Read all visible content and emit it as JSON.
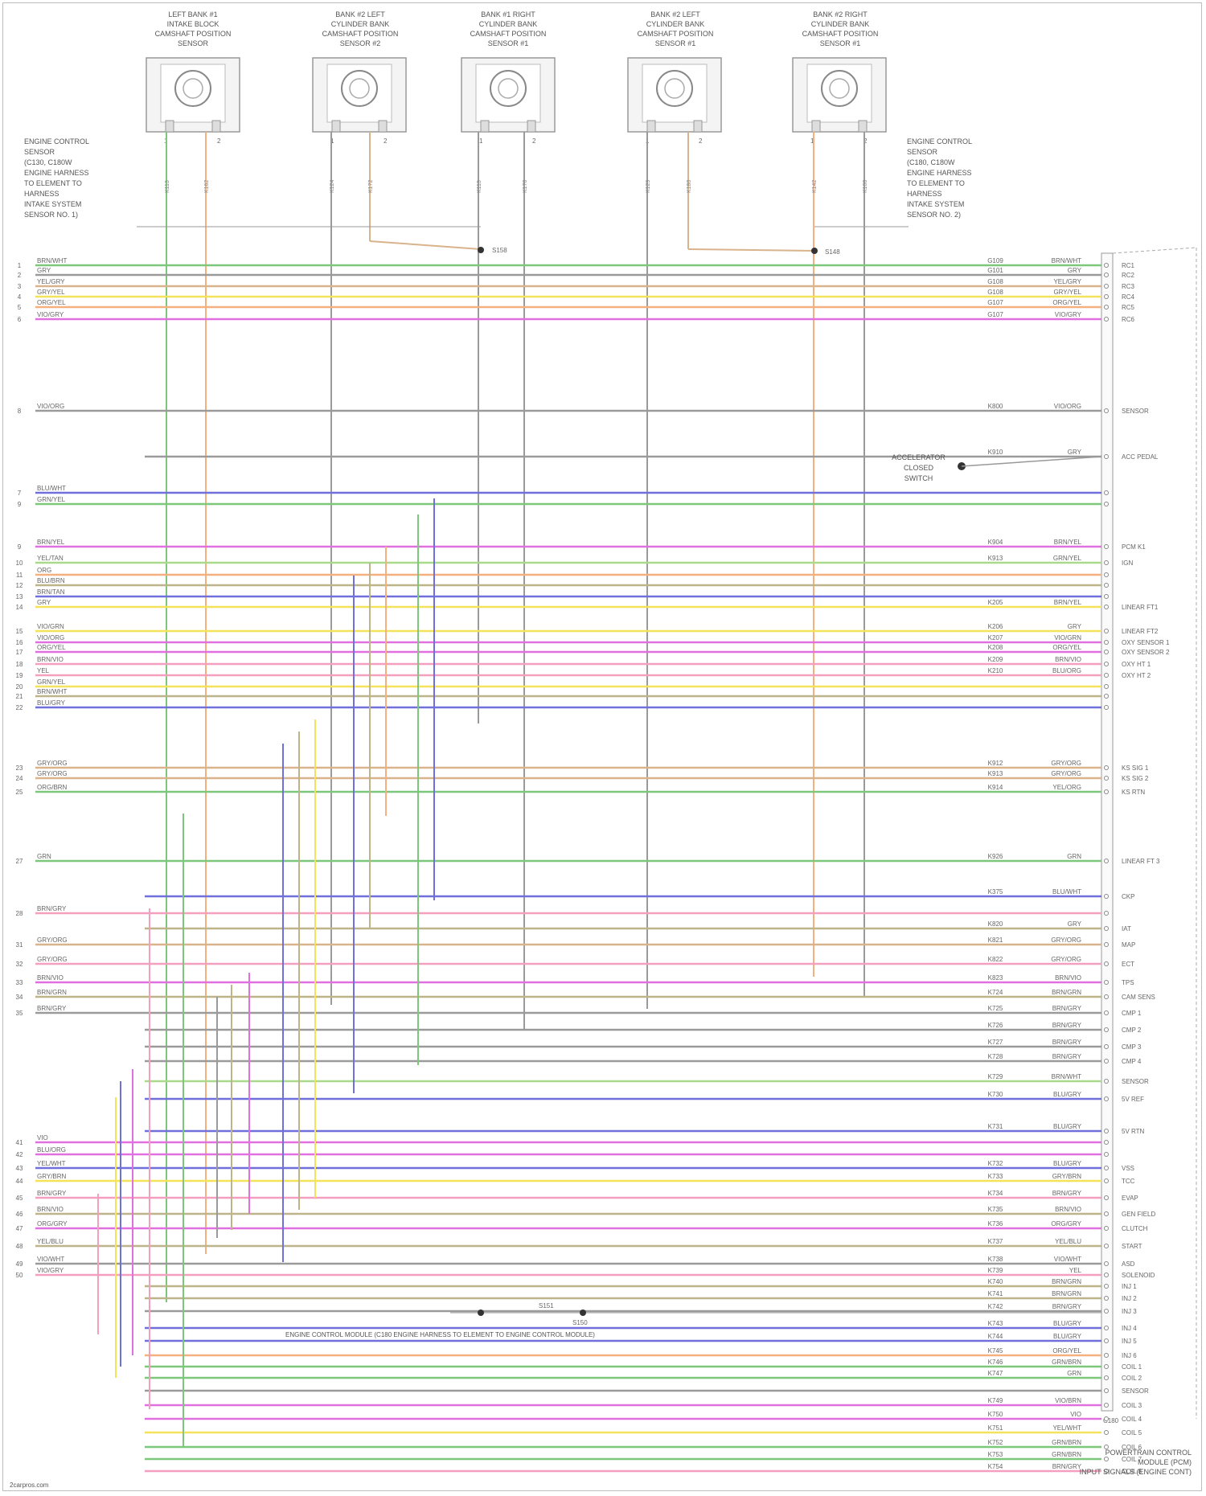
{
  "sensors": [
    {
      "label": "LEFT BANK #1\nINTAKE BLOCK\nCAMSHAFT POSITION\nSENSOR",
      "pins": [
        "1",
        "2"
      ]
    },
    {
      "label": "BANK #2 LEFT\nCYLINDER BANK\nCAMSHAFT POSITION\nSENSOR #2",
      "pins": [
        "1",
        "2"
      ]
    },
    {
      "label": "BANK #1 RIGHT\nCYLINDER BANK\nCAMSHAFT POSITION\nSENSOR #1",
      "pins": [
        "1",
        "2"
      ]
    },
    {
      "label": "BANK #2 LEFT\nCYLINDER BANK\nCAMSHAFT POSITION\nSENSOR #1",
      "pins": [
        "1",
        "2"
      ]
    },
    {
      "label": "BANK #2 RIGHT\nCYLINDER BANK\nCAMSHAFT POSITION\nSENSOR #1",
      "pins": [
        "1",
        "2"
      ]
    }
  ],
  "side_labels": {
    "left": "ENGINE CONTROL\nSENSOR\n(C130, C180W\nENGINE HARNESS\nTO ELEMENT TO\nHARNESS\nINTAKE SYSTEM\nSENSOR NO. 1)",
    "right": "ENGINE CONTROL\nSENSOR\n(C180, C180W\nENGINE HARNESS\nTO ELEMENT TO\nHARNESS\nINTAKE SYSTEM\nSENSOR NO. 2)",
    "accel": "ACCELERATOR\nCLOSED\nSWITCH"
  },
  "splice_labels": [
    "S158",
    "S148",
    "S151",
    "S150"
  ],
  "footer_note": "ENGINE CONTROL MODULE (C180 ENGINE HARNESS TO ELEMENT TO ENGINE CONTROL MODULE)",
  "title_block": "POWERTRAIN CONTROL\nMODULE (PCM)\nINPUT SIGNALS (ENGINE CONT)",
  "watermark": "2carpros.com",
  "connector_label": "C180",
  "colors": {
    "green": "#7dc77a",
    "gray": "#9a9a9a",
    "orange": "#f5b080",
    "yellow": "#f4e25a",
    "magenta": "#e070e0",
    "blue": "#7070dd",
    "olive": "#bdb48a",
    "pink": "#f3a0c0",
    "tan": "#d9b38c",
    "lightgreen": "#a9d98a"
  },
  "rows": [
    {
      "pin": "1",
      "left": "BRN/WHT",
      "color": "green",
      "code": "G109",
      "right": "BRN/WHT",
      "term": "RC1"
    },
    {
      "pin": "2",
      "left": "GRY",
      "color": "gray",
      "code": "G101",
      "right": "GRY",
      "term": "RC2"
    },
    {
      "pin": "3",
      "left": "YEL/GRY",
      "color": "tan",
      "code": "G108",
      "right": "YEL/GRY",
      "term": "RC3"
    },
    {
      "pin": "4",
      "left": "GRY/YEL",
      "color": "yellow",
      "code": "G108",
      "right": "GRY/YEL",
      "term": "RC4"
    },
    {
      "pin": "5",
      "left": "ORG/YEL",
      "color": "orange",
      "code": "G107",
      "right": "ORG/YEL",
      "term": "RC5"
    },
    {
      "pin": "6",
      "left": "VIO/GRY",
      "color": "magenta",
      "code": "G107",
      "right": "VIO/GRY",
      "term": "RC6"
    },
    {
      "pin": "8",
      "left": "VIO/ORG",
      "color": "gray",
      "code": "K800",
      "right": "VIO/ORG",
      "term": "SENSOR"
    },
    {
      "pin": "",
      "left": "",
      "color": "gray",
      "code": "K910",
      "right": "GRY",
      "term": "ACC PEDAL"
    },
    {
      "pin": "7",
      "left": "BLU/WHT",
      "color": "blue",
      "code": "",
      "right": "",
      "term": ""
    },
    {
      "pin": "9",
      "left": "GRN/YEL",
      "color": "green",
      "code": "",
      "right": "",
      "term": ""
    },
    {
      "pin": "9",
      "left": "BRN/YEL",
      "color": "magenta",
      "code": "K904",
      "right": "BRN/YEL",
      "term": "PCM K1"
    },
    {
      "pin": "10",
      "left": "YEL/TAN",
      "color": "lightgreen",
      "code": "K913",
      "right": "GRN/YEL",
      "term": "IGN"
    },
    {
      "pin": "11",
      "left": "ORG",
      "color": "orange",
      "code": "",
      "right": "",
      "term": ""
    },
    {
      "pin": "12",
      "left": "BLU/BRN",
      "color": "olive",
      "code": "",
      "right": "",
      "term": ""
    },
    {
      "pin": "13",
      "left": "BRN/TAN",
      "color": "blue",
      "code": "",
      "right": "",
      "term": ""
    },
    {
      "pin": "14",
      "left": "GRY",
      "color": "yellow",
      "code": "K205",
      "right": "BRN/YEL",
      "term": "LINEAR FT1"
    },
    {
      "pin": "15",
      "left": "VIO/GRN",
      "color": "yellow",
      "code": "K206",
      "right": "GRY",
      "term": "LINEAR FT2"
    },
    {
      "pin": "16",
      "left": "VIO/ORG",
      "color": "magenta",
      "code": "K207",
      "right": "VIO/GRN",
      "term": "OXY SENSOR 1"
    },
    {
      "pin": "17",
      "left": "ORG/YEL",
      "color": "magenta",
      "code": "K208",
      "right": "ORG/YEL",
      "term": "OXY SENSOR 2"
    },
    {
      "pin": "18",
      "left": "BRN/VIO",
      "color": "pink",
      "code": "K209",
      "right": "BRN/VIO",
      "term": "OXY HT 1"
    },
    {
      "pin": "19",
      "left": "YEL",
      "color": "pink",
      "code": "K210",
      "right": "BLU/ORG",
      "term": "OXY HT 2"
    },
    {
      "pin": "20",
      "left": "GRN/YEL",
      "color": "yellow",
      "code": "",
      "right": "",
      "term": ""
    },
    {
      "pin": "21",
      "left": "BRN/WHT",
      "color": "olive",
      "code": "",
      "right": "",
      "term": ""
    },
    {
      "pin": "22",
      "left": "BLU/GRY",
      "color": "blue",
      "code": "",
      "right": "",
      "term": ""
    },
    {
      "pin": "23",
      "left": "GRY/ORG",
      "color": "tan",
      "code": "K912",
      "right": "GRY/ORG",
      "term": "KS SIG 1"
    },
    {
      "pin": "24",
      "left": "GRY/ORG",
      "color": "tan",
      "code": "K913",
      "right": "GRY/ORG",
      "term": "KS SIG 2"
    },
    {
      "pin": "25",
      "left": "ORG/BRN",
      "color": "green",
      "code": "K914",
      "right": "YEL/ORG",
      "term": "KS RTN"
    },
    {
      "pin": "27",
      "left": "GRN",
      "color": "green",
      "code": "K926",
      "right": "GRN",
      "term": "LINEAR FT 3"
    },
    {
      "pin": "",
      "left": "",
      "color": "blue",
      "code": "K375",
      "right": "BLU/WHT",
      "term": "CKP"
    },
    {
      "pin": "28",
      "left": "BRN/GRY",
      "color": "pink",
      "code": "",
      "right": "",
      "term": ""
    },
    {
      "pin": "",
      "left": "",
      "color": "olive",
      "code": "K820",
      "right": "GRY",
      "term": "IAT"
    },
    {
      "pin": "31",
      "left": "GRY/ORG",
      "color": "tan",
      "code": "K821",
      "right": "GRY/ORG",
      "term": "MAP"
    },
    {
      "pin": "32",
      "left": "GRY/ORG",
      "color": "pink",
      "code": "K822",
      "right": "GRY/ORG",
      "term": "ECT"
    },
    {
      "pin": "33",
      "left": "BRN/VIO",
      "color": "magenta",
      "code": "K823",
      "right": "BRN/VIO",
      "term": "TPS"
    },
    {
      "pin": "34",
      "left": "BRN/GRN",
      "color": "olive",
      "code": "K724",
      "right": "BRN/GRN",
      "term": "CAM SENS"
    },
    {
      "pin": "35",
      "left": "BRN/GRY",
      "color": "gray",
      "code": "K725",
      "right": "BRN/GRY",
      "term": "CMP 1"
    },
    {
      "pin": "",
      "left": "",
      "color": "gray",
      "code": "K726",
      "right": "BRN/GRY",
      "term": "CMP 2"
    },
    {
      "pin": "",
      "left": "",
      "color": "gray",
      "code": "K727",
      "right": "BRN/GRY",
      "term": "CMP 3"
    },
    {
      "pin": "",
      "left": "",
      "color": "gray",
      "code": "K728",
      "right": "BRN/GRY",
      "term": "CMP 4"
    },
    {
      "pin": "",
      "left": "",
      "color": "lightgreen",
      "code": "K729",
      "right": "BRN/WHT",
      "term": "SENSOR"
    },
    {
      "pin": "",
      "left": "",
      "color": "blue",
      "code": "K730",
      "right": "BLU/GRY",
      "term": "5V REF"
    },
    {
      "pin": "",
      "left": "",
      "color": "blue",
      "code": "K731",
      "right": "BLU/GRY",
      "term": "5V RTN"
    },
    {
      "pin": "41",
      "left": "VIO",
      "color": "magenta",
      "code": "",
      "right": "",
      "term": ""
    },
    {
      "pin": "42",
      "left": "BLU/ORG",
      "color": "magenta",
      "code": "",
      "right": "",
      "term": ""
    },
    {
      "pin": "43",
      "left": "YEL/WHT",
      "color": "blue",
      "code": "K732",
      "right": "BLU/GRY",
      "term": "VSS"
    },
    {
      "pin": "44",
      "left": "GRY/BRN",
      "color": "yellow",
      "code": "K733",
      "right": "GRY/BRN",
      "term": "TCC"
    },
    {
      "pin": "45",
      "left": "BRN/GRY",
      "color": "pink",
      "code": "K734",
      "right": "BRN/GRY",
      "term": "EVAP"
    },
    {
      "pin": "46",
      "left": "BRN/VIO",
      "color": "olive",
      "code": "K735",
      "right": "BRN/VIO",
      "term": "GEN FIELD"
    },
    {
      "pin": "47",
      "left": "ORG/GRY",
      "color": "magenta",
      "code": "K736",
      "right": "ORG/GRY",
      "term": "CLUTCH"
    },
    {
      "pin": "48",
      "left": "YEL/BLU",
      "color": "olive",
      "code": "K737",
      "right": "YEL/BLU",
      "term": "START"
    },
    {
      "pin": "49",
      "left": "VIO/WHT",
      "color": "gray",
      "code": "K738",
      "right": "VIO/WHT",
      "term": "ASD"
    },
    {
      "pin": "50",
      "left": "VIO/GRY",
      "color": "pink",
      "code": "K739",
      "right": "YEL",
      "term": "SOLENOID"
    },
    {
      "pin": "",
      "left": "",
      "color": "olive",
      "code": "K740",
      "right": "BRN/GRN",
      "term": "INJ 1"
    },
    {
      "pin": "",
      "left": "",
      "color": "olive",
      "code": "K741",
      "right": "BRN/GRN",
      "term": "INJ 2"
    },
    {
      "pin": "",
      "left": "",
      "color": "gray",
      "code": "K742",
      "right": "BRN/GRY",
      "term": "INJ 3"
    },
    {
      "pin": "",
      "left": "",
      "color": "blue",
      "code": "K743",
      "right": "BLU/GRY",
      "term": "INJ 4"
    },
    {
      "pin": "",
      "left": "",
      "color": "blue",
      "code": "K744",
      "right": "BLU/GRY",
      "term": "INJ 5"
    },
    {
      "pin": "",
      "left": "",
      "color": "orange",
      "code": "K745",
      "right": "ORG/YEL",
      "term": "INJ 6"
    },
    {
      "pin": "",
      "left": "",
      "color": "green",
      "code": "K746",
      "right": "GRN/BRN",
      "term": "COIL 1"
    },
    {
      "pin": "",
      "left": "",
      "color": "green",
      "code": "K747",
      "right": "GRN",
      "term": "COIL 2"
    },
    {
      "pin": "",
      "left": "",
      "color": "gray",
      "code": "",
      "right": "",
      "term": "SENSOR"
    },
    {
      "pin": "",
      "left": "",
      "color": "magenta",
      "code": "K749",
      "right": "VIO/BRN",
      "term": "COIL 3"
    },
    {
      "pin": "",
      "left": "",
      "color": "magenta",
      "code": "K750",
      "right": "VIO",
      "term": "COIL 4"
    },
    {
      "pin": "",
      "left": "",
      "color": "yellow",
      "code": "K751",
      "right": "YEL/WHT",
      "term": "COIL 5"
    },
    {
      "pin": "",
      "left": "",
      "color": "green",
      "code": "K752",
      "right": "GRN/BRN",
      "term": "COIL 6"
    },
    {
      "pin": "",
      "left": "",
      "color": "green",
      "code": "K753",
      "right": "GRN/BRN",
      "term": "COIL 7"
    },
    {
      "pin": "",
      "left": "",
      "color": "pink",
      "code": "K754",
      "right": "BRN/GRY",
      "term": "COIL 8"
    }
  ]
}
